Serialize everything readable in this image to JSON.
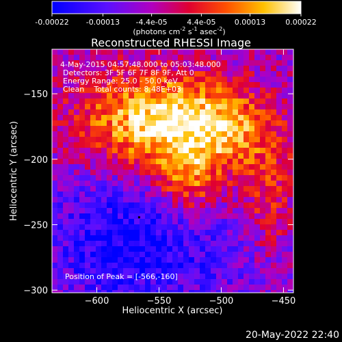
{
  "colorbar": {
    "tick_labels": [
      "-0.00022",
      "-0.00013",
      "-4.4e-05",
      "4.4e-05",
      "0.00013",
      "0.00022"
    ],
    "tick_values": [
      -0.00022,
      -0.00013,
      -4.4e-05,
      4.4e-05,
      0.00013,
      0.00022
    ],
    "range": [
      -0.00022,
      0.00022
    ],
    "units_main": "(photons cm",
    "units_exp1": "-2",
    "units_mid": " s",
    "units_exp2": "-1",
    "units_tail": " asec",
    "units_exp3": "-2",
    "units_close": ")"
  },
  "title": "Reconstructed RHESSI Image",
  "annotations": {
    "time": "4-May-2015 04:57:48.000 to 05:03:48.000",
    "detectors": "Detectors: 3F 5F 6F 7F 8F 9F, Att 0",
    "energy": "Energy Range: 25.0 - 50.0 keV",
    "clean": "Clean    Total counts: 8.48E+03",
    "peak": "Position of Peak = [-566,-160]"
  },
  "timestamp": "20-May-2022 22:40",
  "colors": {
    "background": "#000000",
    "text": "#ffffff"
  },
  "chart_data": {
    "type": "heatmap",
    "title": "Reconstructed RHESSI Image",
    "xlabel": "Heliocentric X (arcsec)",
    "ylabel": "Heliocentric Y (arcsec)",
    "x_ticks": [
      -600,
      -550,
      -500,
      -450
    ],
    "y_ticks": [
      -150,
      -200,
      -250,
      -300
    ],
    "x_tick_labels": [
      "−600",
      "−550",
      "−500",
      "−450"
    ],
    "y_tick_labels": [
      "−150",
      "−200",
      "−250",
      "−300"
    ],
    "xlim": [
      -636,
      -442
    ],
    "ylim": [
      -302,
      -116
    ],
    "peak": [
      -566,
      -160
    ],
    "value_range": [
      -0.00022,
      0.00022
    ],
    "colormap": "blue-purple-red-yellow-white"
  }
}
